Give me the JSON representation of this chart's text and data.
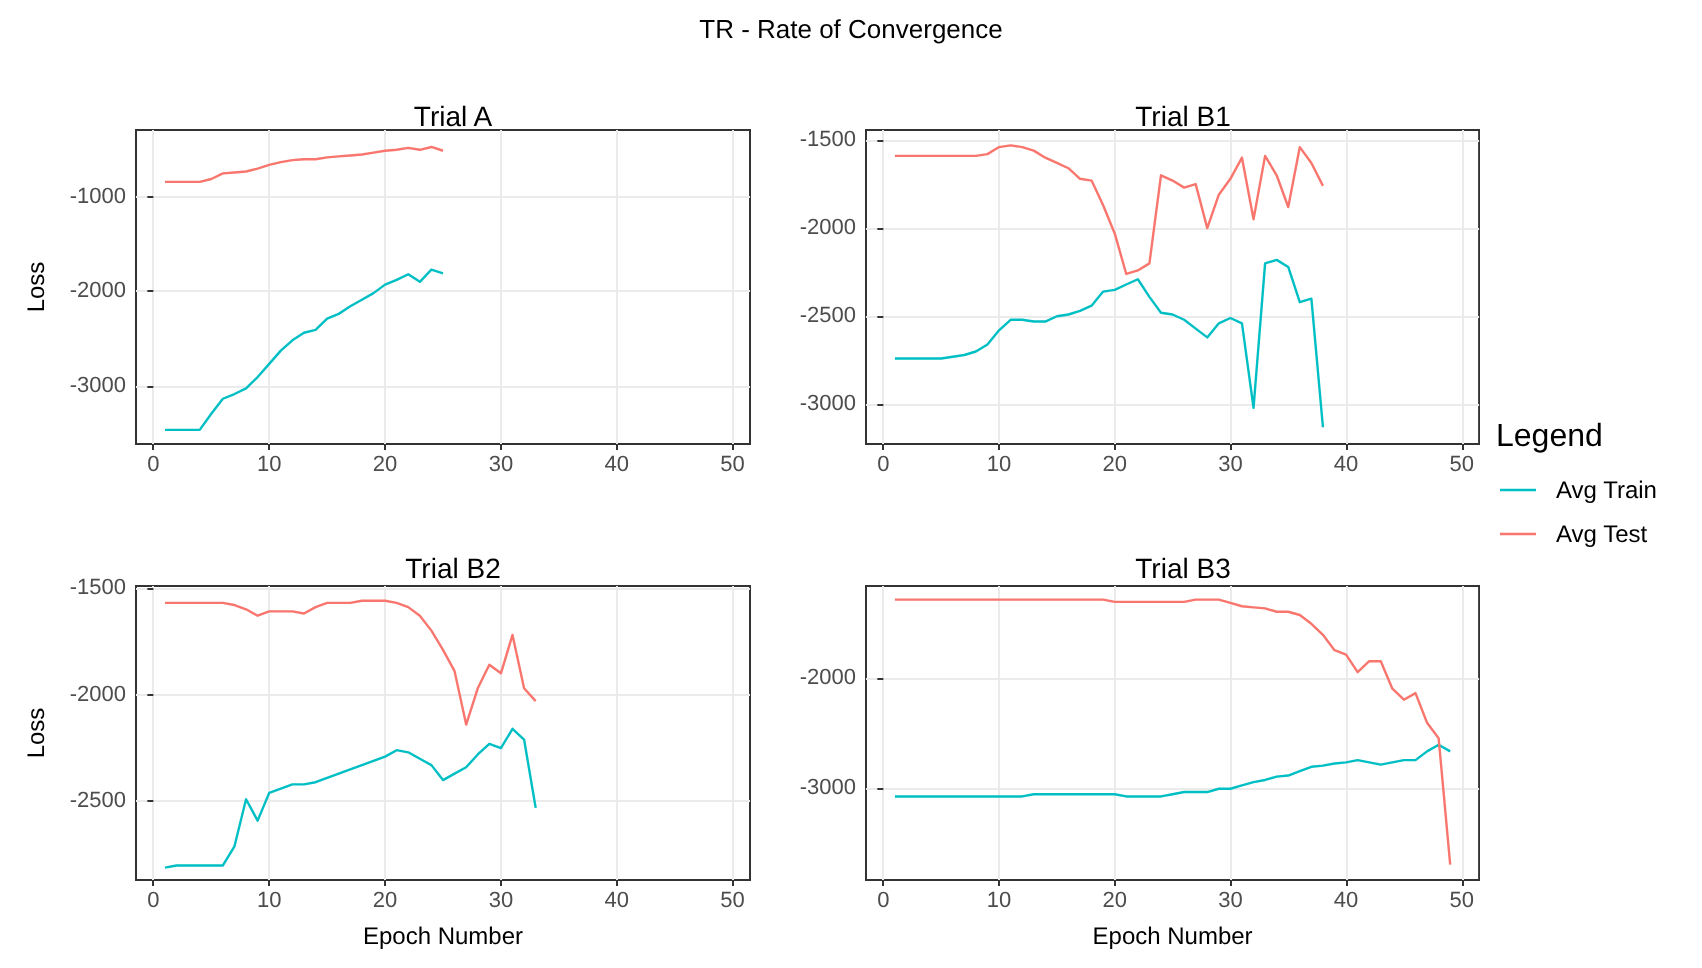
{
  "chart_data": [
    {
      "type": "line",
      "title": "Trial A",
      "ylabel": "Loss",
      "legend": "right",
      "legend_title": "Legend",
      "annotations": [
        "TR - Rate of Convergence"
      ],
      "xlim": [
        -1.5,
        51.5
      ],
      "xticks": [
        0,
        10,
        20,
        30,
        40,
        50
      ],
      "ylim": [
        -3620,
        -290
      ],
      "yticks": [
        -3000,
        -2000,
        -1000
      ],
      "grid": true,
      "series": [
        {
          "name": "Avg Train",
          "color": "#00bfc4",
          "x": [
            1,
            2,
            3,
            4,
            5,
            6,
            7,
            8,
            9,
            10,
            11,
            12,
            13,
            14,
            15,
            16,
            17,
            18,
            19,
            20,
            21,
            22,
            23,
            24,
            25
          ],
          "values": [
            -3470,
            -3470,
            -3470,
            -3470,
            -3300,
            -3140,
            -3090,
            -3030,
            -2910,
            -2770,
            -2630,
            -2520,
            -2440,
            -2410,
            -2290,
            -2240,
            -2160,
            -2090,
            -2020,
            -1930,
            -1880,
            -1820,
            -1900,
            -1770,
            -1810
          ]
        },
        {
          "name": "Avg Test",
          "color": "#f8766d",
          "x": [
            1,
            2,
            3,
            4,
            5,
            6,
            7,
            8,
            9,
            10,
            11,
            12,
            13,
            14,
            15,
            16,
            17,
            18,
            19,
            20,
            21,
            22,
            23,
            24,
            25
          ],
          "values": [
            -840,
            -840,
            -840,
            -840,
            -810,
            -750,
            -740,
            -730,
            -700,
            -660,
            -630,
            -610,
            -600,
            -600,
            -580,
            -570,
            -560,
            -550,
            -530,
            -510,
            -500,
            -480,
            -500,
            -470,
            -510
          ]
        }
      ]
    },
    {
      "type": "line",
      "title": "Trial B1",
      "xlim": [
        -1.5,
        51.5
      ],
      "xticks": [
        0,
        10,
        20,
        30,
        40,
        50
      ],
      "ylim": [
        -3225,
        -1443
      ],
      "yticks": [
        -3000,
        -2500,
        -2000,
        -1500
      ],
      "grid": true,
      "series": [
        {
          "color": "#00bfc4",
          "x": [
            1,
            2,
            3,
            4,
            5,
            6,
            7,
            8,
            9,
            10,
            11,
            12,
            13,
            14,
            15,
            16,
            17,
            18,
            19,
            20,
            21,
            22,
            23,
            24,
            25,
            26,
            27,
            28,
            29,
            30,
            31,
            32,
            33,
            34,
            35,
            36,
            37,
            38
          ],
          "values": [
            -2740,
            -2740,
            -2740,
            -2740,
            -2740,
            -2730,
            -2720,
            -2700,
            -2660,
            -2580,
            -2520,
            -2520,
            -2530,
            -2530,
            -2500,
            -2490,
            -2470,
            -2440,
            -2360,
            -2350,
            -2320,
            -2290,
            -2390,
            -2480,
            -2490,
            -2520,
            -2570,
            -2620,
            -2540,
            -2510,
            -2540,
            -3020,
            -2200,
            -2180,
            -2220,
            -2420,
            -2400,
            -3130
          ]
        },
        {
          "color": "#f8766d",
          "x": [
            1,
            2,
            3,
            4,
            5,
            6,
            7,
            8,
            9,
            10,
            11,
            12,
            13,
            14,
            15,
            16,
            17,
            18,
            19,
            20,
            21,
            22,
            23,
            24,
            25,
            26,
            27,
            28,
            29,
            30,
            31,
            32,
            33,
            34,
            35,
            36,
            37,
            38
          ],
          "values": [
            -1590,
            -1590,
            -1590,
            -1590,
            -1590,
            -1590,
            -1590,
            -1590,
            -1580,
            -1540,
            -1530,
            -1540,
            -1560,
            -1600,
            -1630,
            -1660,
            -1720,
            -1730,
            -1870,
            -2030,
            -2260,
            -2240,
            -2200,
            -1700,
            -1730,
            -1770,
            -1750,
            -2000,
            -1810,
            -1720,
            -1600,
            -1950,
            -1590,
            -1700,
            -1880,
            -1540,
            -1630,
            -1760
          ]
        }
      ]
    },
    {
      "type": "line",
      "title": "Trial B2",
      "xlabel": "Epoch Number",
      "ylabel": "Loss",
      "xlim": [
        -1.5,
        51.5
      ],
      "xticks": [
        0,
        10,
        20,
        30,
        40,
        50
      ],
      "ylim": [
        -2868,
        -1491
      ],
      "yticks": [
        -2500,
        -2000,
        -1500
      ],
      "grid": true,
      "series": [
        {
          "color": "#00bfc4",
          "x": [
            1,
            2,
            3,
            4,
            5,
            6,
            7,
            8,
            9,
            10,
            11,
            12,
            13,
            14,
            15,
            16,
            17,
            18,
            19,
            20,
            21,
            22,
            23,
            24,
            25,
            26,
            27,
            28,
            29,
            30,
            31,
            32,
            33
          ],
          "values": [
            -2810,
            -2800,
            -2800,
            -2800,
            -2800,
            -2800,
            -2710,
            -2490,
            -2590,
            -2460,
            -2440,
            -2420,
            -2420,
            -2410,
            -2390,
            -2370,
            -2350,
            -2330,
            -2310,
            -2290,
            -2260,
            -2270,
            -2300,
            -2330,
            -2400,
            -2370,
            -2340,
            -2280,
            -2230,
            -2250,
            -2160,
            -2210,
            -2530
          ]
        },
        {
          "color": "#f8766d",
          "x": [
            1,
            2,
            3,
            4,
            5,
            6,
            7,
            8,
            9,
            10,
            11,
            12,
            13,
            14,
            15,
            16,
            17,
            18,
            19,
            20,
            21,
            22,
            23,
            24,
            25,
            26,
            27,
            28,
            29,
            30,
            31,
            32,
            33
          ],
          "values": [
            -1570,
            -1570,
            -1570,
            -1570,
            -1570,
            -1570,
            -1580,
            -1600,
            -1630,
            -1610,
            -1610,
            -1610,
            -1620,
            -1590,
            -1570,
            -1570,
            -1570,
            -1560,
            -1560,
            -1560,
            -1570,
            -1590,
            -1630,
            -1700,
            -1790,
            -1890,
            -2140,
            -1970,
            -1860,
            -1900,
            -1720,
            -1970,
            -2030
          ]
        }
      ]
    },
    {
      "type": "line",
      "title": "Trial B3",
      "xlabel": "Epoch Number",
      "xlim": [
        -1.5,
        51.5
      ],
      "xticks": [
        0,
        10,
        20,
        30,
        40,
        50
      ],
      "ylim": [
        -3840,
        -1166
      ],
      "yticks": [
        -3000,
        -2000
      ],
      "grid": true,
      "series": [
        {
          "color": "#00bfc4",
          "x": [
            1,
            2,
            3,
            4,
            5,
            6,
            7,
            8,
            9,
            10,
            11,
            12,
            13,
            14,
            15,
            16,
            17,
            18,
            19,
            20,
            21,
            22,
            23,
            24,
            25,
            26,
            27,
            28,
            29,
            30,
            31,
            32,
            33,
            34,
            35,
            36,
            37,
            38,
            39,
            40,
            41,
            42,
            43,
            44,
            45,
            46,
            47,
            48,
            49
          ],
          "values": [
            -3080,
            -3080,
            -3080,
            -3080,
            -3080,
            -3080,
            -3080,
            -3080,
            -3080,
            -3080,
            -3080,
            -3080,
            -3060,
            -3060,
            -3060,
            -3060,
            -3060,
            -3060,
            -3060,
            -3060,
            -3080,
            -3080,
            -3080,
            -3080,
            -3060,
            -3040,
            -3040,
            -3040,
            -3010,
            -3010,
            -2980,
            -2950,
            -2930,
            -2900,
            -2890,
            -2850,
            -2810,
            -2800,
            -2780,
            -2770,
            -2750,
            -2770,
            -2790,
            -2770,
            -2750,
            -2750,
            -2670,
            -2610,
            -2670
          ]
        },
        {
          "color": "#f8766d",
          "x": [
            1,
            2,
            3,
            4,
            5,
            6,
            7,
            8,
            9,
            10,
            11,
            12,
            13,
            14,
            15,
            16,
            17,
            18,
            19,
            20,
            21,
            22,
            23,
            24,
            25,
            26,
            27,
            28,
            29,
            30,
            31,
            32,
            33,
            34,
            35,
            36,
            37,
            38,
            39,
            40,
            41,
            42,
            43,
            44,
            45,
            46,
            47,
            48,
            49
          ],
          "values": [
            -1290,
            -1290,
            -1290,
            -1290,
            -1290,
            -1290,
            -1290,
            -1290,
            -1290,
            -1290,
            -1290,
            -1290,
            -1290,
            -1290,
            -1290,
            -1290,
            -1290,
            -1290,
            -1290,
            -1310,
            -1310,
            -1310,
            -1310,
            -1310,
            -1310,
            -1310,
            -1290,
            -1290,
            -1290,
            -1320,
            -1350,
            -1360,
            -1370,
            -1400,
            -1400,
            -1430,
            -1510,
            -1610,
            -1750,
            -1790,
            -1950,
            -1850,
            -1850,
            -2100,
            -2200,
            -2140,
            -2410,
            -2550,
            -3700
          ]
        }
      ]
    }
  ]
}
